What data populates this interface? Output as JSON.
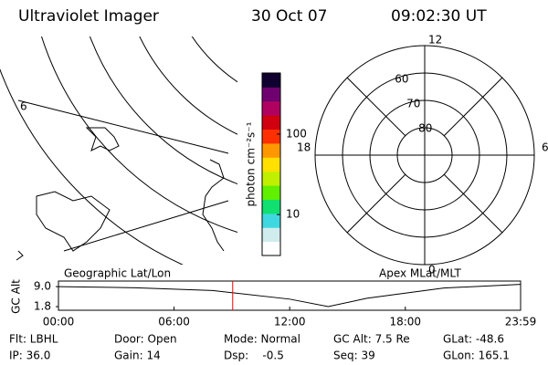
{
  "header": {
    "title": "Ultraviolet Imager",
    "date": "30 Oct 07",
    "time": "09:02:30 UT"
  },
  "map": {
    "label": "6"
  },
  "colorbar": {
    "label": "photon cm⁻²s⁻¹",
    "log": true,
    "lim": [
      3.1,
      575
    ],
    "ticks": [
      10,
      100
    ],
    "colormap": [
      "#ffffff",
      "#d0ecec",
      "#40d8e0",
      "#10e070",
      "#60f000",
      "#c0f000",
      "#ffe000",
      "#ff9800",
      "#ff3000",
      "#d00010",
      "#b00060",
      "#700070",
      "#100030"
    ]
  },
  "polar": {
    "rlim": [
      90,
      50
    ],
    "rticks": [
      60,
      70,
      80
    ],
    "mlt_ticks": [
      12,
      6,
      0,
      18
    ]
  },
  "chart_data": {
    "type": "line",
    "title_left": "Geographic Lat/Lon",
    "title_right": "Apex MLat/MLT",
    "ylabel": "GC Alt",
    "x": [
      0,
      240,
      480,
      720,
      840,
      960,
      1200,
      1439
    ],
    "values": [
      9.0,
      8.6,
      7.6,
      4.5,
      1.8,
      4.8,
      8.5,
      9.8
    ],
    "xlim": [
      0,
      1439
    ],
    "ylim": [
      0.5,
      11
    ],
    "xticks": [
      {
        "value": 0,
        "label": "00:00"
      },
      {
        "value": 360,
        "label": "06:00"
      },
      {
        "value": 720,
        "label": "12:00"
      },
      {
        "value": 1080,
        "label": "18:00"
      },
      {
        "value": 1439,
        "label": "23:59"
      }
    ],
    "yticks": [
      {
        "value": 1.8,
        "label": "1.8"
      },
      {
        "value": 9.0,
        "label": "9.0"
      }
    ],
    "color": "#000000",
    "marker_x": 542.5,
    "marker_color": "#ff0000"
  },
  "footer": {
    "rows": [
      [
        "Flt: LBHL",
        "Door: Open",
        "Mode: Normal",
        "GC Alt: 7.5 Re",
        "GLat: -48.6"
      ],
      [
        "IP: 36.0",
        "Gain: 14",
        "Dsp:    -0.5",
        "Seq: 39",
        "GLon: 165.1"
      ]
    ]
  }
}
